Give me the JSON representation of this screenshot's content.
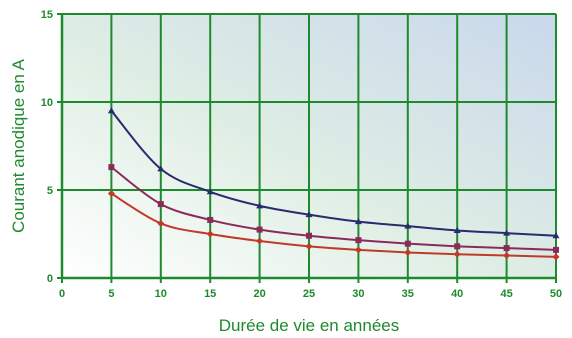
{
  "chart_data": {
    "type": "line",
    "title": "",
    "xlabel": "Durée de vie en années",
    "ylabel": "Courant anodique en A",
    "xlim": [
      0,
      50
    ],
    "ylim": [
      0,
      15
    ],
    "x_ticks": [
      "0",
      "5",
      "10",
      "15",
      "20",
      "25",
      "30",
      "35",
      "40",
      "45",
      "50"
    ],
    "y_ticks": [
      "0",
      "5",
      "10",
      "15"
    ],
    "grid": true,
    "x": [
      5,
      10,
      15,
      20,
      25,
      30,
      35,
      40,
      45,
      50
    ],
    "series": [
      {
        "color": "#2a2a6e",
        "marker": "triangle",
        "values": [
          9.5,
          6.2,
          4.9,
          4.1,
          3.6,
          3.2,
          2.95,
          2.7,
          2.55,
          2.4
        ]
      },
      {
        "color": "#8b2a5a",
        "marker": "square",
        "values": [
          6.3,
          4.2,
          3.3,
          2.75,
          2.4,
          2.15,
          1.95,
          1.8,
          1.7,
          1.6
        ]
      },
      {
        "color": "#c0392b",
        "marker": "diamond",
        "values": [
          4.8,
          3.1,
          2.5,
          2.1,
          1.8,
          1.6,
          1.45,
          1.35,
          1.28,
          1.2
        ]
      }
    ],
    "colors": {
      "grid": "#1e8a2e",
      "text": "#1e8a2e",
      "gradient_start": "#ffffff",
      "gradient_end": "#c9d8ec"
    }
  }
}
